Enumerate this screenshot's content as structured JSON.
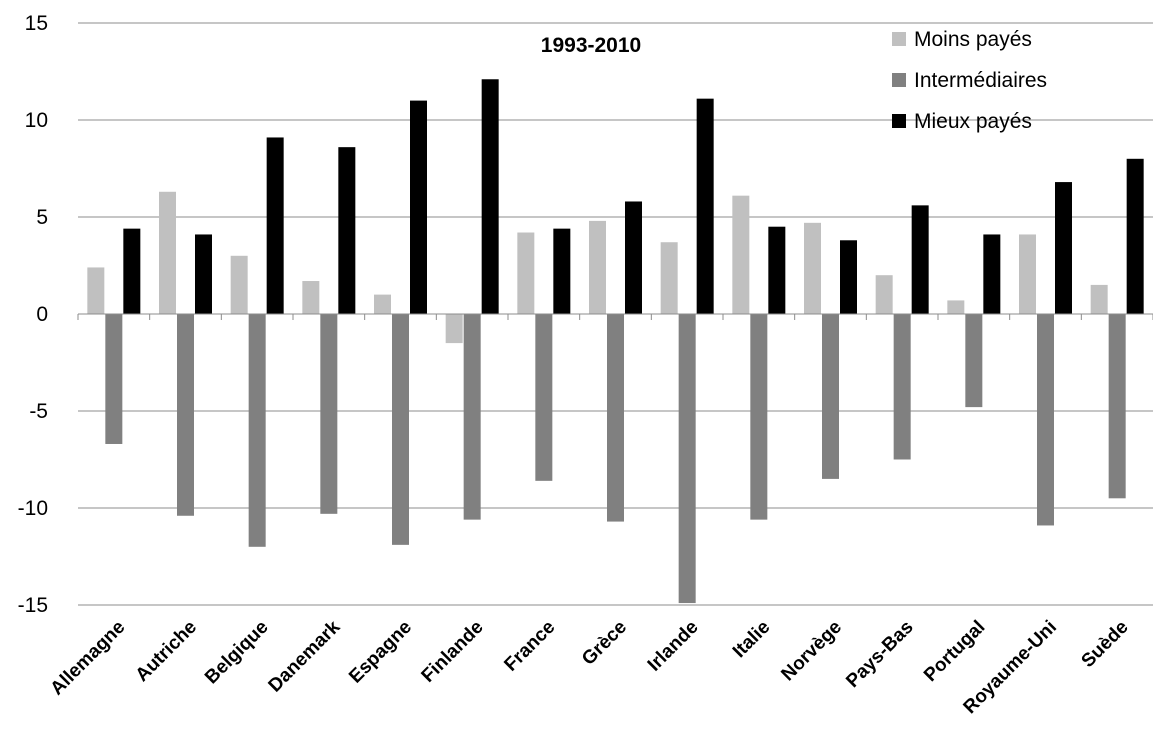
{
  "chart_data": {
    "type": "bar",
    "title": "1993-2010",
    "xlabel": "",
    "ylabel": "",
    "ylim": [
      -15,
      15
    ],
    "yticks": [
      "15",
      "10",
      "5",
      "0",
      "-5",
      "-10",
      "-15"
    ],
    "grid": true,
    "legend_position": "top-right",
    "categories": [
      "Allemagne",
      "Autriche",
      "Belgique",
      "Danemark",
      "Espagne",
      "Finlande",
      "France",
      "Grèce",
      "Irlande",
      "Italie",
      "Norvège",
      "Pays-Bas",
      "Portugal",
      "Royaume-Uni",
      "Suède"
    ],
    "series": [
      {
        "name": "Moins payés",
        "color": "#c0c0c0",
        "values": [
          2.4,
          6.3,
          3.0,
          1.7,
          1.0,
          -1.5,
          4.2,
          4.8,
          3.7,
          6.1,
          4.7,
          2.0,
          0.7,
          4.1,
          1.5
        ]
      },
      {
        "name": "Intermédiaires",
        "color": "#808080",
        "values": [
          -6.7,
          -10.4,
          -12.0,
          -10.3,
          -11.9,
          -10.6,
          -8.6,
          -10.7,
          -14.9,
          -10.6,
          -8.5,
          -7.5,
          -4.8,
          -10.9,
          -9.5
        ]
      },
      {
        "name": "Mieux payés",
        "color": "#000000",
        "values": [
          4.4,
          4.1,
          9.1,
          8.6,
          11.0,
          12.1,
          4.4,
          5.8,
          11.1,
          4.5,
          3.8,
          5.6,
          4.1,
          6.8,
          8.0
        ]
      }
    ]
  }
}
